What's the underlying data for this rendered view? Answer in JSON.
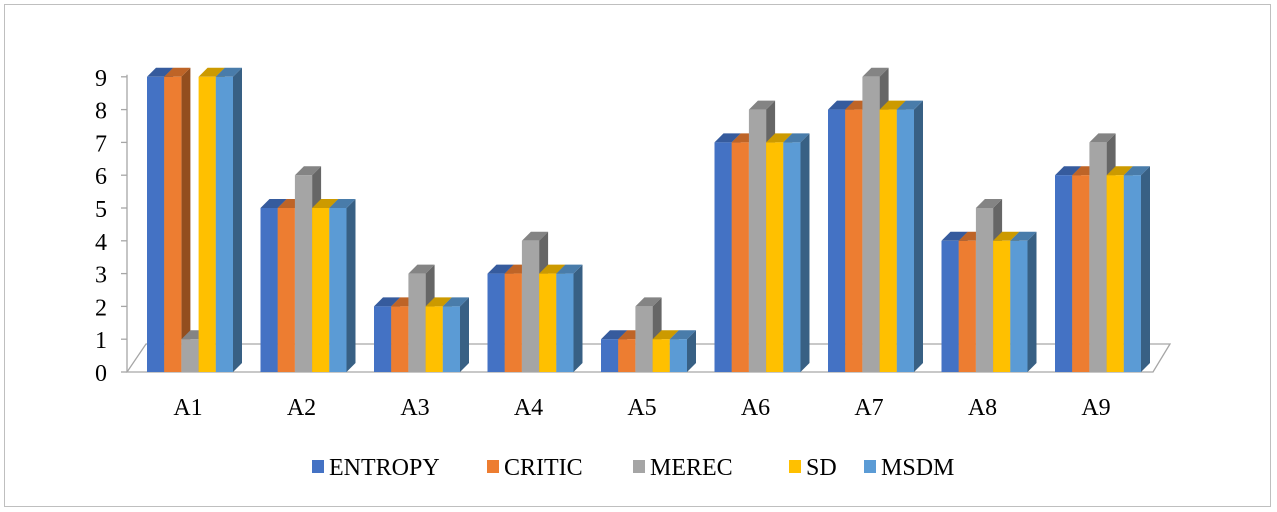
{
  "chart_data": {
    "type": "bar",
    "categories": [
      "A1",
      "A2",
      "A3",
      "A4",
      "A5",
      "A6",
      "A7",
      "A8",
      "A9"
    ],
    "series": [
      {
        "name": "ENTROPY",
        "color": "#4472c4",
        "values": [
          9,
          5,
          2,
          3,
          1,
          7,
          8,
          4,
          6
        ]
      },
      {
        "name": "CRITIC",
        "color": "#ed7d31",
        "values": [
          9,
          5,
          2,
          3,
          1,
          7,
          8,
          4,
          6
        ]
      },
      {
        "name": "MEREC",
        "color": "#a5a5a5",
        "values": [
          1,
          6,
          3,
          4,
          2,
          8,
          9,
          5,
          7
        ]
      },
      {
        "name": "SD",
        "color": "#ffc000",
        "values": [
          9,
          5,
          2,
          3,
          1,
          7,
          8,
          4,
          6
        ]
      },
      {
        "name": "MSDM",
        "color": "#5b9bd5",
        "values": [
          9,
          5,
          2,
          3,
          1,
          7,
          8,
          4,
          6
        ]
      }
    ],
    "yticks": [
      "0",
      "1",
      "2",
      "3",
      "4",
      "5",
      "6",
      "7",
      "8",
      "9"
    ],
    "ylim": [
      0,
      9
    ],
    "grid": false,
    "legend_position": "bottom",
    "style": "3d-clustered-column"
  }
}
